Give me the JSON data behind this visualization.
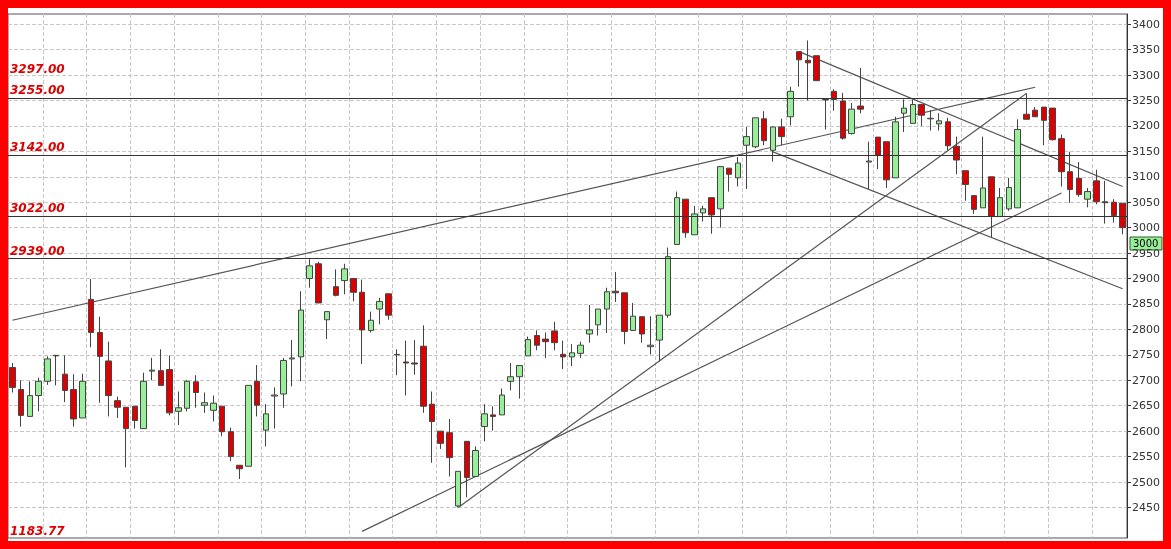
{
  "chart_data": {
    "type": "candlestick",
    "categories": [
      null,
      null,
      null,
      null,
      null,
      null,
      null,
      null,
      null,
      null,
      null,
      null,
      null,
      null,
      null,
      null,
      null,
      null,
      null,
      null,
      null,
      null,
      null,
      null,
      null,
      null,
      null,
      null,
      null,
      null,
      null,
      null,
      null,
      null,
      null,
      null,
      null,
      null,
      null,
      null,
      null,
      null,
      null,
      null,
      null,
      null,
      null,
      null,
      null,
      null,
      null,
      null,
      null,
      null,
      null,
      null,
      null,
      null,
      null,
      null,
      null,
      null,
      null,
      null,
      null,
      null,
      null,
      null,
      null,
      null,
      null,
      null,
      null,
      null,
      null,
      null,
      null,
      null,
      null,
      null,
      null,
      null,
      null,
      null,
      null,
      null,
      null,
      null,
      null,
      null,
      null,
      null,
      null,
      null,
      null,
      null,
      null,
      null,
      null,
      null,
      null,
      null,
      null,
      null,
      null,
      null,
      null,
      null,
      null,
      null,
      null,
      null,
      null,
      null,
      null,
      null,
      null,
      null,
      null,
      null,
      null,
      null,
      null,
      null,
      null,
      null,
      null,
      null
    ],
    "colors": [
      "#dd0000",
      "#dd0000",
      "#99ee99",
      "#99ee99",
      "#99ee99",
      "#99ee99",
      "#dd0000",
      "#dd0000",
      "#99ee99",
      "#dd0000",
      "#dd0000",
      "#dd0000",
      "#dd0000",
      "#dd0000",
      "#dd0000",
      "#99ee99",
      "#99ee99",
      "#dd0000",
      "#dd0000",
      "#99ee99",
      "#99ee99",
      "#dd0000",
      "#99ee99",
      "#99ee99",
      "#dd0000",
      "#dd0000",
      "#dd0000",
      "#99ee99",
      "#dd0000",
      "#99ee99",
      "#99ee99",
      "#99ee99",
      "#99ee99",
      "#99ee99",
      "#99ee99",
      "#dd0000",
      "#99ee99",
      "#dd0000",
      "#99ee99",
      "#dd0000",
      "#dd0000",
      "#99ee99",
      "#99ee99",
      "#dd0000",
      "#99ee99",
      "#dd0000",
      "#dd0000",
      "#dd0000",
      "#dd0000",
      "#dd0000",
      "#dd0000",
      "#99ee99",
      "#dd0000",
      "#99ee99",
      "#99ee99",
      "#dd0000",
      "#99ee99",
      "#99ee99",
      "#99ee99",
      "#99ee99",
      "#dd0000",
      "#dd0000",
      "#dd0000",
      "#dd0000",
      "#99ee99",
      "#99ee99",
      "#99ee99",
      "#99ee99",
      "#99ee99",
      "#dd0000",
      "#dd0000",
      "#99ee99",
      "#dd0000",
      "#99ee99",
      "#99ee99",
      "#99ee99",
      "#99ee99",
      "#dd0000",
      "#99ee99",
      "#99ee99",
      "#dd0000",
      "#99ee99",
      "#dd0000",
      "#99ee99",
      "#99ee99",
      "#99ee99",
      "#dd0000",
      "#99ee99",
      "#dd0000",
      "#99ee99",
      "#dd0000",
      "#dd0000",
      "#dd0000",
      "#99ee99",
      "#dd0000",
      "#dd0000",
      "#99ee99",
      "#dd0000",
      "#99ee99",
      "#dd0000",
      "#dd0000",
      "#99ee99",
      "#99ee99",
      "#99ee99",
      "#dd0000",
      "#99ee99",
      "#99ee99",
      "#dd0000",
      "#dd0000",
      "#dd0000",
      "#dd0000",
      "#99ee99",
      "#dd0000",
      "#99ee99",
      "#99ee99",
      "#99ee99",
      "#dd0000",
      "#dd0000",
      "#dd0000",
      "#dd0000",
      "#dd0000",
      "#dd0000",
      "#dd0000",
      "#99ee99",
      "#dd0000",
      "#dd0000",
      "#dd0000",
      "#dd0000"
    ],
    "ohlc": [
      [
        2725,
        2734,
        2676,
        2686
      ],
      [
        2682,
        2700,
        2609,
        2631
      ],
      [
        2629,
        2698,
        2629,
        2670
      ],
      [
        2670,
        2705,
        2639,
        2698
      ],
      [
        2698,
        2747,
        2691,
        2742
      ],
      [
        2748,
        2750,
        2690,
        2749
      ],
      [
        2712,
        2749,
        2657,
        2680
      ],
      [
        2682,
        2712,
        2609,
        2624
      ],
      [
        2626,
        2713,
        2626,
        2698
      ],
      [
        2859,
        2899,
        2765,
        2794
      ],
      [
        2794,
        2825,
        2656,
        2747
      ],
      [
        2738,
        2776,
        2629,
        2670
      ],
      [
        2660,
        2668,
        2626,
        2647
      ],
      [
        2647,
        2647,
        2529,
        2605
      ],
      [
        2649,
        2649,
        2605,
        2621
      ],
      [
        2605,
        2715,
        2605,
        2698
      ],
      [
        2718,
        2744,
        2700,
        2720
      ],
      [
        2719,
        2761,
        2690,
        2690
      ],
      [
        2721,
        2749,
        2631,
        2636
      ],
      [
        2639,
        2678,
        2612,
        2646
      ],
      [
        2645,
        2700,
        2639,
        2698
      ],
      [
        2697,
        2710,
        2646,
        2676
      ],
      [
        2651,
        2676,
        2636,
        2656
      ],
      [
        2641,
        2670,
        2619,
        2655
      ],
      [
        2649,
        2649,
        2590,
        2599
      ],
      [
        2599,
        2607,
        2541,
        2550
      ],
      [
        2533,
        2533,
        2506,
        2526
      ],
      [
        2531,
        2690,
        2531,
        2690
      ],
      [
        2698,
        2730,
        2629,
        2651
      ],
      [
        2602,
        2653,
        2570,
        2634
      ],
      [
        2669,
        2686,
        2605,
        2671
      ],
      [
        2673,
        2744,
        2646,
        2739
      ],
      [
        2742,
        2779,
        2688,
        2744
      ],
      [
        2746,
        2875,
        2698,
        2838
      ],
      [
        2900,
        2938,
        2882,
        2925
      ],
      [
        2929,
        2933,
        2852,
        2852
      ],
      [
        2819,
        2835,
        2781,
        2835
      ],
      [
        2884,
        2918,
        2865,
        2867
      ],
      [
        2896,
        2929,
        2869,
        2919
      ],
      [
        2900,
        2900,
        2855,
        2873
      ],
      [
        2873,
        2898,
        2732,
        2799
      ],
      [
        2798,
        2835,
        2794,
        2818
      ],
      [
        2840,
        2862,
        2810,
        2855
      ],
      [
        2870,
        2870,
        2819,
        2828
      ],
      [
        2750,
        2761,
        2710,
        2751
      ],
      [
        2736,
        2778,
        2670,
        2734
      ],
      [
        2734,
        2779,
        2711,
        2732
      ],
      [
        2767,
        2808,
        2636,
        2649
      ],
      [
        2653,
        2678,
        2538,
        2619
      ],
      [
        2600,
        2600,
        2565,
        2576
      ],
      [
        2597,
        2624,
        2511,
        2548
      ],
      [
        2453,
        2521,
        2450,
        2521
      ],
      [
        2580,
        2580,
        2470,
        2509
      ],
      [
        2511,
        2570,
        2511,
        2562
      ],
      [
        2609,
        2653,
        2580,
        2634
      ],
      [
        2632,
        2649,
        2601,
        2629
      ],
      [
        2632,
        2684,
        2632,
        2671
      ],
      [
        2698,
        2734,
        2680,
        2707
      ],
      [
        2707,
        2729,
        2664,
        2729
      ],
      [
        2748,
        2786,
        2748,
        2780
      ],
      [
        2788,
        2798,
        2759,
        2769
      ],
      [
        2781,
        2794,
        2744,
        2776
      ],
      [
        2797,
        2815,
        2759,
        2774
      ],
      [
        2751,
        2778,
        2722,
        2746
      ],
      [
        2746,
        2771,
        2728,
        2754
      ],
      [
        2753,
        2776,
        2744,
        2769
      ],
      [
        2791,
        2848,
        2774,
        2799
      ],
      [
        2809,
        2840,
        2788,
        2840
      ],
      [
        2840,
        2882,
        2793,
        2874
      ],
      [
        2875,
        2913,
        2854,
        2872
      ],
      [
        2872,
        2872,
        2771,
        2796
      ],
      [
        2798,
        2852,
        2798,
        2826
      ],
      [
        2825,
        2825,
        2774,
        2791
      ],
      [
        2766,
        2826,
        2751,
        2769
      ],
      [
        2779,
        2828,
        2737,
        2828
      ],
      [
        2828,
        2961,
        2823,
        2943
      ],
      [
        2967,
        3071,
        2967,
        3059
      ],
      [
        3056,
        3056,
        2980,
        2990
      ],
      [
        2986,
        3043,
        2986,
        3027
      ],
      [
        3029,
        3043,
        3012,
        3037
      ],
      [
        3059,
        3059,
        2988,
        3025
      ],
      [
        3037,
        3120,
        3000,
        3120
      ],
      [
        3117,
        3117,
        3071,
        3105
      ],
      [
        3098,
        3139,
        3081,
        3127
      ],
      [
        3162,
        3198,
        3076,
        3179
      ],
      [
        3159,
        3216,
        3156,
        3216
      ],
      [
        3214,
        3229,
        3162,
        3171
      ],
      [
        3152,
        3198,
        3130,
        3198
      ],
      [
        3198,
        3214,
        3162,
        3179
      ],
      [
        3218,
        3277,
        3201,
        3268
      ],
      [
        3346,
        3346,
        3277,
        3330
      ],
      [
        3329,
        3368,
        3250,
        3324
      ],
      [
        3338,
        3338,
        3289,
        3289
      ],
      [
        3251,
        3253,
        3193,
        3252
      ],
      [
        3268,
        3272,
        3230,
        3252
      ],
      [
        3249,
        3265,
        3173,
        3176
      ],
      [
        3185,
        3245,
        3183,
        3233
      ],
      [
        3239,
        3314,
        3225,
        3233
      ],
      [
        3129,
        3169,
        3076,
        3131
      ],
      [
        3178,
        3178,
        3115,
        3142
      ],
      [
        3169,
        3169,
        3078,
        3094
      ],
      [
        3098,
        3218,
        3098,
        3208
      ],
      [
        3225,
        3252,
        3188,
        3235
      ],
      [
        3205,
        3252,
        3205,
        3242
      ],
      [
        3242,
        3242,
        3200,
        3221
      ],
      [
        3214,
        3231,
        3191,
        3215
      ],
      [
        3204,
        3225,
        3191,
        3210
      ],
      [
        3208,
        3216,
        3152,
        3161
      ],
      [
        3160,
        3179,
        3105,
        3133
      ],
      [
        3112,
        3112,
        3053,
        3085
      ],
      [
        3063,
        3063,
        3027,
        3036
      ],
      [
        3039,
        3179,
        3039,
        3078
      ],
      [
        3100,
        3100,
        2981,
        3022
      ],
      [
        3022,
        3078,
        3022,
        3059
      ],
      [
        3037,
        3098,
        3033,
        3079
      ],
      [
        3039,
        3213,
        3039,
        3193
      ],
      [
        3223,
        3264,
        3213,
        3213
      ],
      [
        3231,
        3237,
        3218,
        3218
      ],
      [
        3237,
        3237,
        3162,
        3211
      ],
      [
        3235,
        3235,
        3171,
        3173
      ],
      [
        3175,
        3183,
        3081,
        3110
      ],
      [
        3110,
        3149,
        3049,
        3075
      ],
      [
        3097,
        3129,
        3061,
        3065
      ],
      [
        3056,
        3078,
        3040,
        3071
      ],
      [
        3092,
        3114,
        3046,
        3051
      ],
      [
        3051,
        3092,
        3008,
        3049
      ],
      [
        3050,
        3056,
        3010,
        3024
      ],
      [
        3048,
        3048,
        2987,
        3000
      ]
    ],
    "series": [
      {
        "type": "line",
        "color": "#555555",
        "values": [
          2818,
          null,
          null,
          null,
          null,
          null,
          null,
          null,
          null,
          null,
          null,
          null,
          null,
          null,
          null,
          null,
          null,
          null,
          null,
          null,
          null,
          null,
          null,
          null,
          null,
          null,
          null,
          null,
          null,
          null,
          null,
          null,
          null,
          null,
          null,
          null,
          null,
          null,
          null,
          null,
          null,
          null,
          null,
          null,
          null,
          null,
          null,
          null,
          null,
          null,
          null,
          null,
          null,
          null,
          null,
          null,
          null,
          null,
          null,
          null,
          null,
          null,
          null,
          null,
          null,
          null,
          null,
          null,
          null,
          null,
          null,
          null,
          null,
          null,
          null,
          null,
          null,
          null,
          null,
          null,
          null,
          null,
          null,
          null,
          null,
          null,
          null,
          null,
          null,
          null,
          null,
          null,
          null,
          null,
          null,
          null,
          null,
          null,
          null,
          null,
          null,
          null,
          null,
          null,
          null,
          null,
          null,
          null,
          null,
          null,
          null,
          null,
          null,
          null,
          null,
          null,
          null,
          3276,
          null,
          null,
          null,
          null,
          null,
          null,
          null,
          null,
          null,
          null
        ]
      },
      {
        "type": "line",
        "color": "#555555",
        "values": [
          null,
          null,
          null,
          null,
          null,
          null,
          null,
          null,
          null,
          null,
          null,
          null,
          null,
          null,
          null,
          null,
          null,
          null,
          null,
          null,
          null,
          null,
          null,
          null,
          null,
          null,
          null,
          null,
          null,
          null,
          null,
          null,
          null,
          null,
          null,
          null,
          null,
          null,
          null,
          null,
          null,
          null,
          null,
          null,
          null,
          null,
          null,
          null,
          null,
          null,
          null,
          2450,
          null,
          null,
          null,
          null,
          null,
          null,
          null,
          null,
          null,
          null,
          null,
          null,
          null,
          null,
          null,
          null,
          null,
          null,
          null,
          null,
          null,
          null,
          null,
          null,
          null,
          null,
          null,
          null,
          null,
          null,
          null,
          null,
          null,
          null,
          null,
          null,
          null,
          null,
          null,
          null,
          null,
          null,
          null,
          null,
          null,
          null,
          null,
          null,
          null,
          null,
          null,
          null,
          null,
          null,
          null,
          null,
          null,
          null,
          null,
          null,
          null,
          null,
          null,
          null,
          3264,
          null,
          null,
          null,
          null,
          null,
          null,
          null,
          null,
          null,
          null,
          null
        ]
      },
      {
        "type": "line",
        "color": "#555555",
        "values": [
          null,
          null,
          null,
          null,
          null,
          null,
          null,
          null,
          null,
          null,
          null,
          null,
          null,
          null,
          null,
          null,
          null,
          null,
          null,
          null,
          null,
          null,
          null,
          null,
          null,
          null,
          null,
          null,
          null,
          null,
          null,
          null,
          null,
          null,
          null,
          null,
          null,
          null,
          null,
          null,
          2403,
          null,
          null,
          null,
          null,
          null,
          null,
          null,
          null,
          null,
          null,
          null,
          null,
          null,
          null,
          null,
          null,
          null,
          null,
          null,
          null,
          null,
          null,
          null,
          null,
          null,
          null,
          null,
          null,
          null,
          null,
          null,
          null,
          null,
          null,
          null,
          null,
          null,
          null,
          null,
          null,
          null,
          null,
          null,
          null,
          null,
          null,
          null,
          null,
          null,
          null,
          null,
          null,
          null,
          null,
          null,
          null,
          null,
          null,
          null,
          null,
          null,
          null,
          null,
          null,
          null,
          null,
          null,
          null,
          null,
          null,
          null,
          null,
          null,
          null,
          null,
          null,
          null,
          null,
          null,
          3068,
          null,
          null,
          null,
          null,
          null,
          null,
          null
        ]
      },
      {
        "type": "line",
        "color": "#555555",
        "values": [
          null,
          null,
          null,
          null,
          null,
          null,
          null,
          null,
          null,
          null,
          null,
          null,
          null,
          null,
          null,
          null,
          null,
          null,
          null,
          null,
          null,
          null,
          null,
          null,
          null,
          null,
          null,
          null,
          null,
          null,
          null,
          null,
          null,
          null,
          null,
          null,
          null,
          null,
          null,
          null,
          null,
          null,
          null,
          null,
          null,
          null,
          null,
          null,
          null,
          null,
          null,
          null,
          null,
          null,
          null,
          null,
          null,
          null,
          null,
          null,
          null,
          null,
          null,
          null,
          null,
          null,
          null,
          null,
          null,
          null,
          null,
          null,
          null,
          null,
          null,
          null,
          null,
          null,
          null,
          null,
          null,
          null,
          null,
          null,
          null,
          null,
          null,
          null,
          null,
          null,
          3346,
          null,
          null,
          null,
          null,
          null,
          null,
          null,
          null,
          null,
          null,
          null,
          null,
          null,
          null,
          null,
          null,
          null,
          null,
          null,
          null,
          null,
          null,
          null,
          null,
          null,
          null,
          null,
          null,
          null,
          null,
          null,
          null,
          null,
          null,
          null,
          null,
          3081
        ]
      },
      {
        "type": "line",
        "color": "#555555",
        "values": [
          null,
          null,
          null,
          null,
          null,
          null,
          null,
          null,
          null,
          null,
          null,
          null,
          null,
          null,
          null,
          null,
          null,
          null,
          null,
          null,
          null,
          null,
          null,
          null,
          null,
          null,
          null,
          null,
          null,
          null,
          null,
          null,
          null,
          null,
          null,
          null,
          null,
          null,
          null,
          null,
          null,
          null,
          null,
          null,
          null,
          null,
          null,
          null,
          null,
          null,
          null,
          null,
          null,
          null,
          null,
          null,
          null,
          null,
          null,
          null,
          null,
          null,
          null,
          null,
          null,
          null,
          null,
          null,
          null,
          null,
          null,
          null,
          null,
          null,
          null,
          null,
          null,
          null,
          null,
          null,
          null,
          null,
          null,
          null,
          null,
          null,
          null,
          3149,
          null,
          null,
          null,
          null,
          null,
          null,
          null,
          null,
          null,
          null,
          null,
          null,
          null,
          null,
          null,
          null,
          null,
          null,
          null,
          null,
          null,
          null,
          null,
          null,
          null,
          null,
          null,
          null,
          null,
          null,
          null,
          null,
          null,
          null,
          null,
          null,
          null,
          null,
          null,
          2880
        ]
      }
    ],
    "ref_lines": [
      {
        "axis": "y",
        "value": 3255,
        "label": "3255.00",
        "color": "#333333"
      },
      {
        "axis": "y",
        "value": 3142,
        "label": "3142.00",
        "color": "#333333"
      },
      {
        "axis": "y",
        "value": 3022,
        "label": "3022.00",
        "color": "#333333"
      },
      {
        "axis": "y",
        "value": 2939,
        "label": "2939.00",
        "color": "#333333"
      }
    ],
    "annotations": [
      "3297.00",
      "3000",
      "1183.77"
    ],
    "ylim": [
      2390,
      3420
    ],
    "yticks": [
      2450,
      2500,
      2550,
      2600,
      2650,
      2700,
      2750,
      2800,
      2850,
      2900,
      2950,
      3000,
      3050,
      3100,
      3150,
      3200,
      3250,
      3300,
      3350,
      3400
    ],
    "grid": true,
    "tick_labels": "y"
  }
}
